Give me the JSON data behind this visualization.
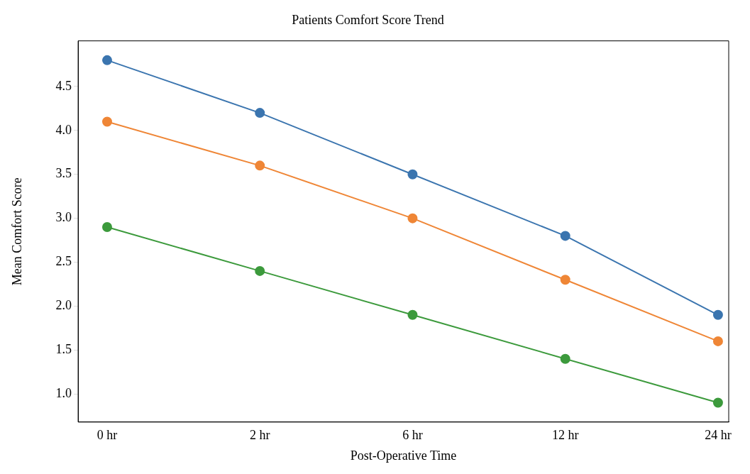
{
  "chart_data": {
    "type": "line",
    "title": "Patients Comfort Score Trend",
    "xlabel": "Post-Operative Time",
    "ylabel": "Mean Comfort Score",
    "categories": [
      "0 hr",
      "2 hr",
      "6 hr",
      "12 hr",
      "24 hr"
    ],
    "series": [
      {
        "color": "#3b75af",
        "values": [
          4.8,
          4.2,
          3.5,
          2.8,
          1.9
        ]
      },
      {
        "color": "#ef8636",
        "values": [
          4.1,
          3.6,
          3.0,
          2.3,
          1.6
        ]
      },
      {
        "color": "#3c9a3c",
        "values": [
          2.9,
          2.4,
          1.9,
          1.4,
          0.9
        ]
      }
    ],
    "ylim": [
      0.68,
      5.02
    ],
    "yticks": [
      {
        "value": 1,
        "label": "1.0"
      },
      1.5,
      {
        "value": 2,
        "label": "2.0"
      },
      2.5,
      {
        "value": 3,
        "label": "3.0"
      },
      3.5,
      {
        "value": 4,
        "label": "4.0"
      },
      4.5
    ],
    "grid": false,
    "legend": false,
    "marker": "circle",
    "line_style": "solid"
  }
}
